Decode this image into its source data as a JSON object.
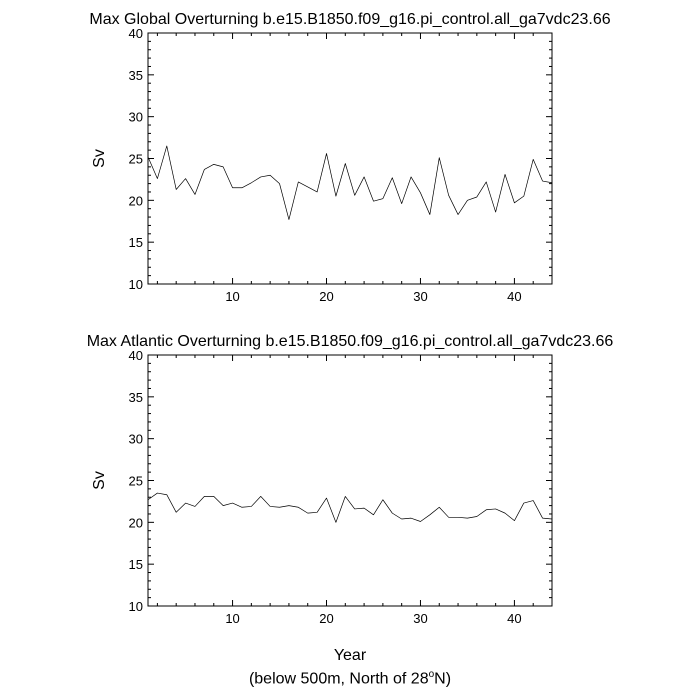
{
  "chart_data": [
    {
      "type": "line",
      "title": "Max Global Overturning b.e15.B1850.f09_g16.pi_control.all_ga7vdc23.66",
      "ylabel": "Sv",
      "xlabel": "",
      "xlim": [
        1,
        44
      ],
      "ylim": [
        10,
        40
      ],
      "x_ticks": [
        10,
        20,
        30,
        40
      ],
      "y_ticks": [
        10,
        15,
        20,
        25,
        30,
        35,
        40
      ],
      "grid": false,
      "series": [
        {
          "x": [
            1,
            2,
            3,
            4,
            5,
            6,
            7,
            8,
            9,
            10,
            11,
            12,
            13,
            14,
            15,
            16,
            17,
            18,
            19,
            20,
            21,
            22,
            23,
            24,
            25,
            26,
            27,
            28,
            29,
            30,
            31,
            32,
            33,
            34,
            35,
            36,
            37,
            38,
            39,
            40,
            41,
            42,
            43,
            44
          ],
          "values": [
            25.2,
            22.6,
            26.5,
            21.3,
            22.6,
            20.7,
            23.7,
            24.3,
            24.0,
            21.5,
            21.5,
            22.1,
            22.8,
            23.0,
            22.0,
            17.7,
            22.2,
            21.6,
            21.0,
            25.6,
            20.5,
            24.4,
            20.6,
            22.8,
            19.9,
            20.2,
            22.7,
            19.6,
            22.8,
            20.9,
            18.3,
            25.1,
            20.6,
            18.3,
            20.0,
            20.4,
            22.2,
            18.6,
            23.1,
            19.7,
            20.5,
            24.9,
            22.3,
            22.1
          ]
        }
      ]
    },
    {
      "type": "line",
      "title": "Max Atlantic Overturning b.e15.B1850.f09_g16.pi_control.all_ga7vdc23.66",
      "ylabel": "Sv",
      "xlabel": "Year",
      "xlim": [
        1,
        44
      ],
      "ylim": [
        10,
        40
      ],
      "x_ticks": [
        10,
        20,
        30,
        40
      ],
      "y_ticks": [
        10,
        15,
        20,
        25,
        30,
        35,
        40
      ],
      "grid": false,
      "series": [
        {
          "x": [
            1,
            2,
            3,
            4,
            5,
            6,
            7,
            8,
            9,
            10,
            11,
            12,
            13,
            14,
            15,
            16,
            17,
            18,
            19,
            20,
            21,
            22,
            23,
            24,
            25,
            26,
            27,
            28,
            29,
            30,
            31,
            32,
            33,
            34,
            35,
            36,
            37,
            38,
            39,
            40,
            41,
            42,
            43,
            44
          ],
          "values": [
            22.7,
            23.5,
            23.3,
            21.2,
            22.3,
            21.9,
            23.1,
            23.1,
            22.0,
            22.3,
            21.8,
            21.9,
            23.1,
            21.9,
            21.8,
            22.0,
            21.8,
            21.1,
            21.2,
            22.9,
            20.0,
            23.1,
            21.6,
            21.7,
            20.9,
            22.7,
            21.1,
            20.4,
            20.5,
            20.1,
            20.9,
            21.8,
            20.6,
            20.6,
            20.5,
            20.7,
            21.5,
            21.6,
            21.1,
            20.2,
            22.3,
            22.6,
            20.5,
            20.4
          ]
        }
      ]
    }
  ],
  "footnote": {
    "prefix": "(below 500m, North of 28",
    "superscript": "o",
    "suffix": "N)"
  }
}
